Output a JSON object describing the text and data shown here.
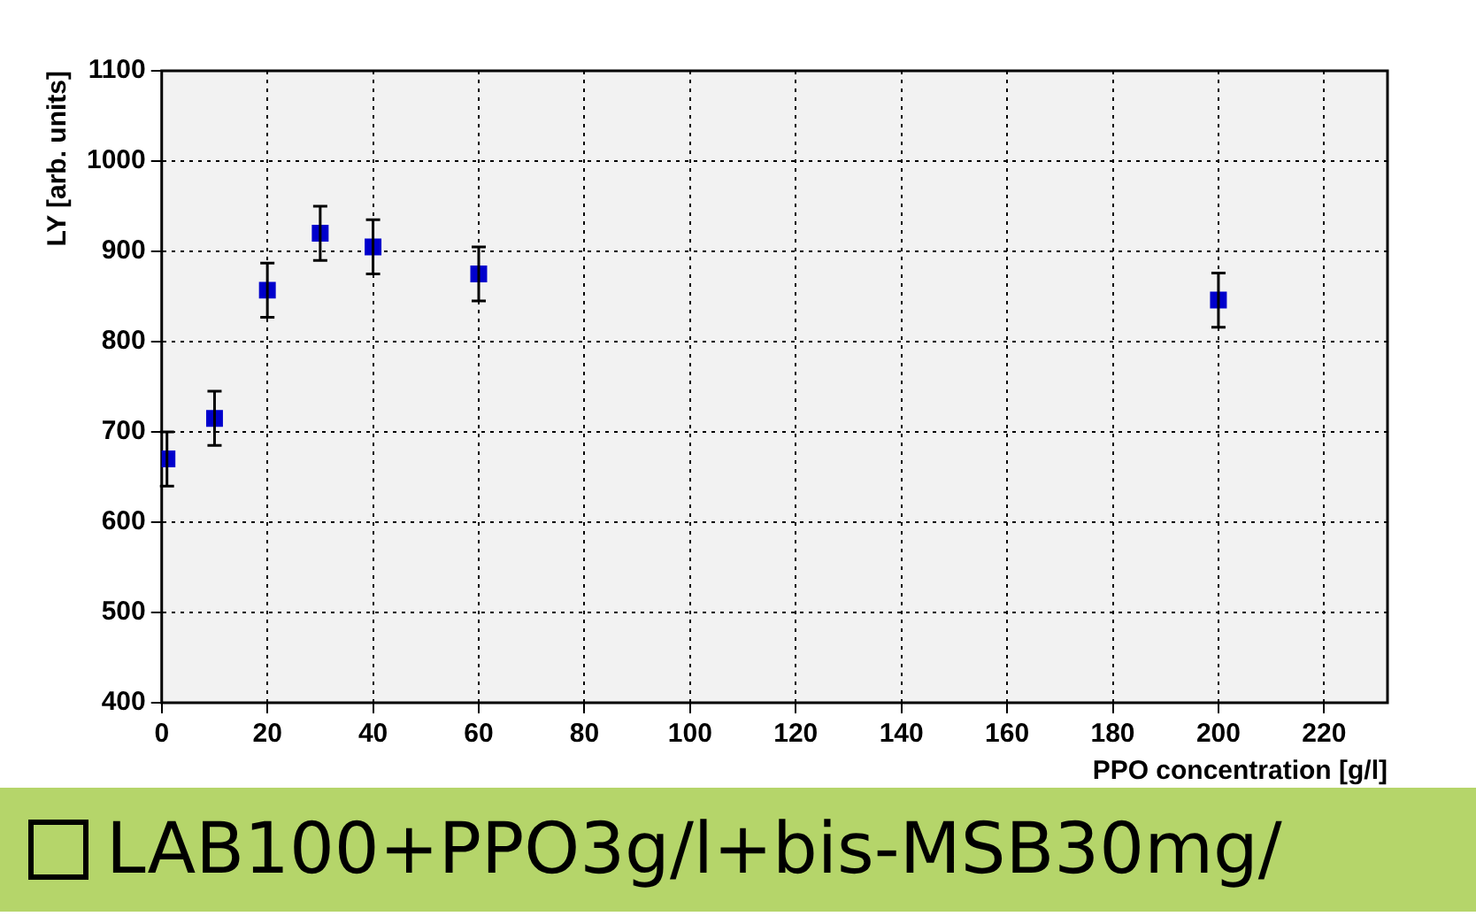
{
  "chart_data": {
    "type": "scatter",
    "xlabel": "PPO concentration [g/l]",
    "ylabel": "LY [arb. units]",
    "x": [
      1,
      10,
      20,
      30,
      40,
      60,
      200
    ],
    "series": [
      {
        "color": "#0000cc",
        "values": [
          670,
          715,
          857,
          920,
          905,
          875,
          846
        ],
        "errors": [
          30,
          30,
          30,
          30,
          30,
          30,
          30
        ]
      }
    ],
    "xlim": [
      0,
      232
    ],
    "xticks": [
      0,
      20,
      40,
      60,
      80,
      100,
      120,
      140,
      160,
      180,
      200,
      220
    ],
    "ylim": [
      400,
      1100
    ],
    "yticks": [
      400,
      500,
      600,
      700,
      800,
      900,
      1000,
      1100
    ],
    "grid": true,
    "legend": false,
    "marker": "square",
    "annotations": [
      "LAB100+PPO3g/l+bis-MSB30mg/"
    ]
  }
}
